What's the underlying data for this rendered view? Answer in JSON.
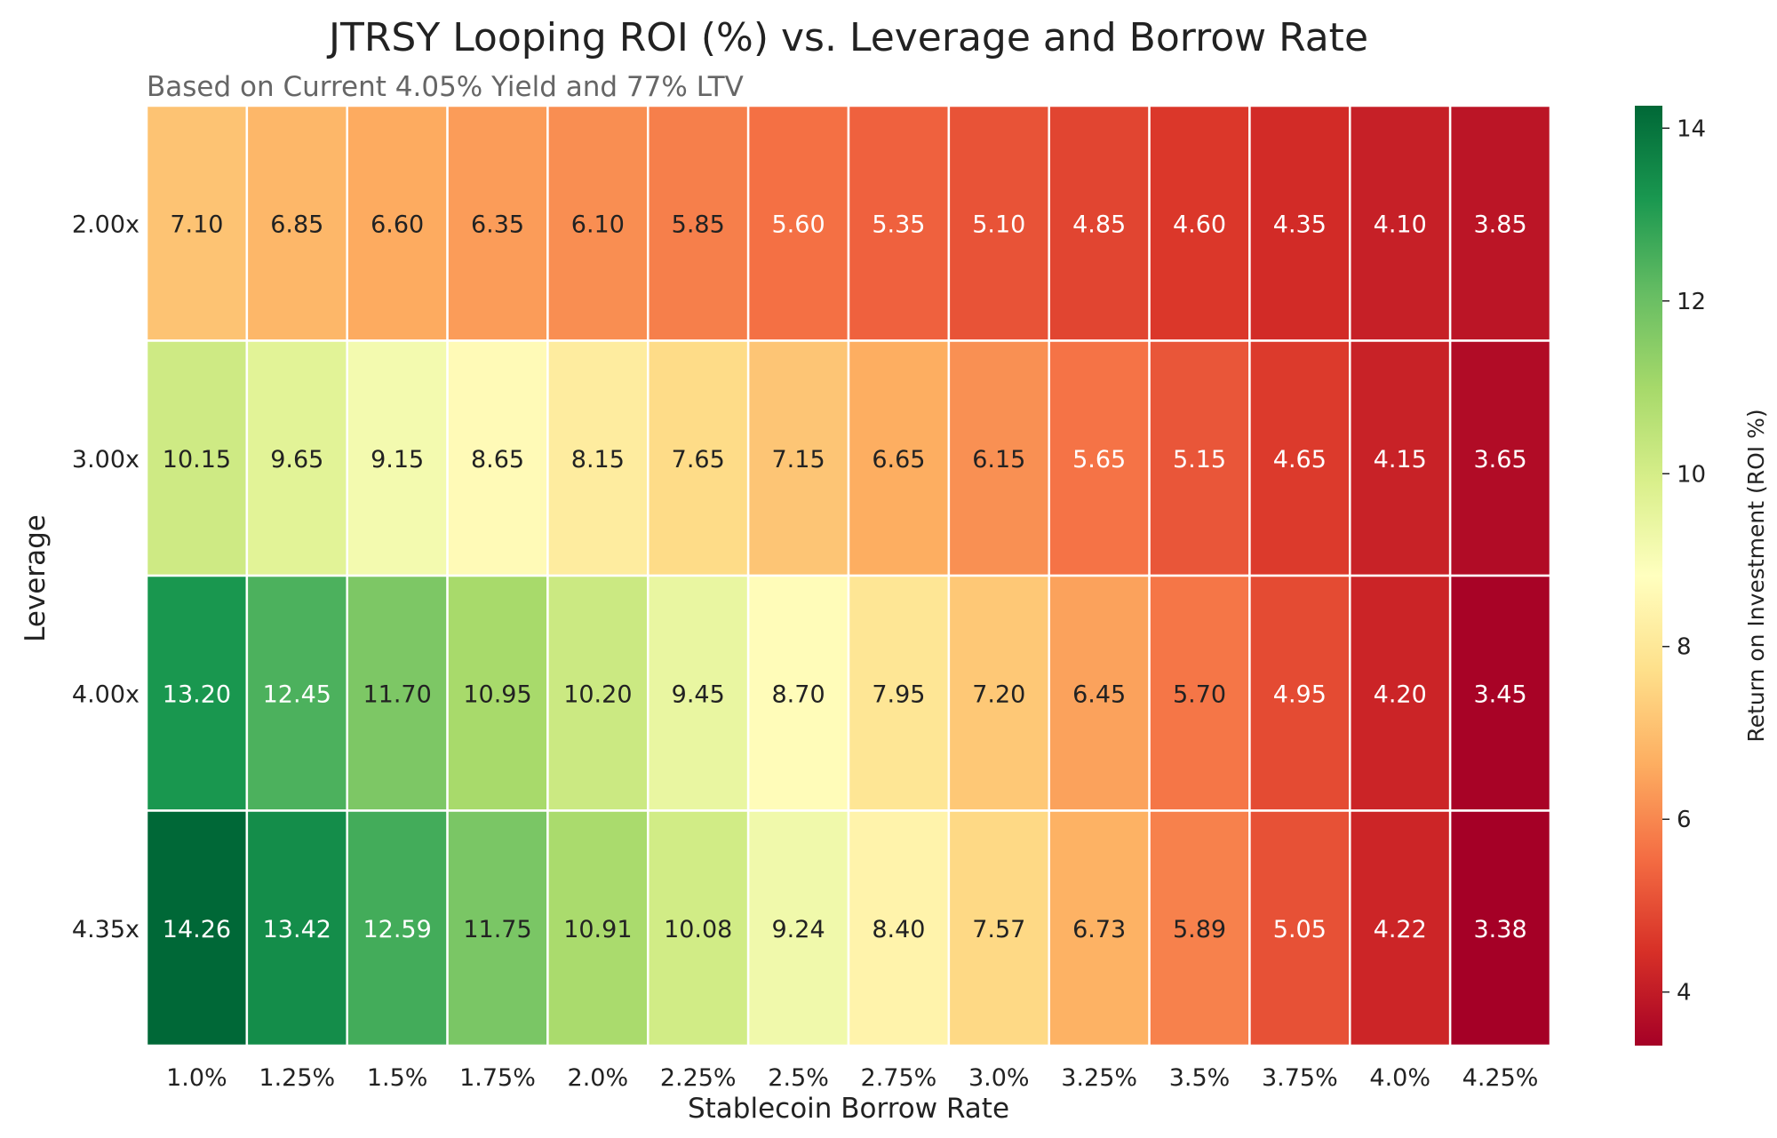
{
  "chart_data": {
    "type": "heatmap",
    "title": "JTRSY Looping ROI (%) vs. Leverage and Borrow Rate",
    "subtitle": "Based on Current 4.05% Yield and 77% LTV",
    "xlabel": "Stablecoin Borrow Rate",
    "ylabel": "Leverage",
    "x_categories": [
      "1.0%",
      "1.25%",
      "1.5%",
      "1.75%",
      "2.0%",
      "2.25%",
      "2.5%",
      "2.75%",
      "3.0%",
      "3.25%",
      "3.5%",
      "3.75%",
      "4.0%",
      "4.25%"
    ],
    "y_categories": [
      "2.00x",
      "3.00x",
      "4.00x",
      "4.35x"
    ],
    "values": [
      [
        7.1,
        6.85,
        6.6,
        6.35,
        6.1,
        5.85,
        5.6,
        5.35,
        5.1,
        4.85,
        4.6,
        4.35,
        4.1,
        3.85
      ],
      [
        10.15,
        9.65,
        9.15,
        8.65,
        8.15,
        7.65,
        7.15,
        6.65,
        6.15,
        5.65,
        5.15,
        4.65,
        4.15,
        3.65
      ],
      [
        13.2,
        12.45,
        11.7,
        10.95,
        10.2,
        9.45,
        8.7,
        7.95,
        7.2,
        6.45,
        5.7,
        4.95,
        4.2,
        3.45
      ],
      [
        14.26,
        13.42,
        12.59,
        11.75,
        10.91,
        10.08,
        9.24,
        8.4,
        7.57,
        6.73,
        5.89,
        5.05,
        4.22,
        3.38
      ]
    ],
    "colormap": "RdYlGn",
    "vmin": 3.38,
    "vmax": 14.26,
    "colorbar": {
      "label": "Return on Investment (ROI %)",
      "ticks": [
        4,
        6,
        8,
        10,
        12,
        14
      ]
    }
  }
}
